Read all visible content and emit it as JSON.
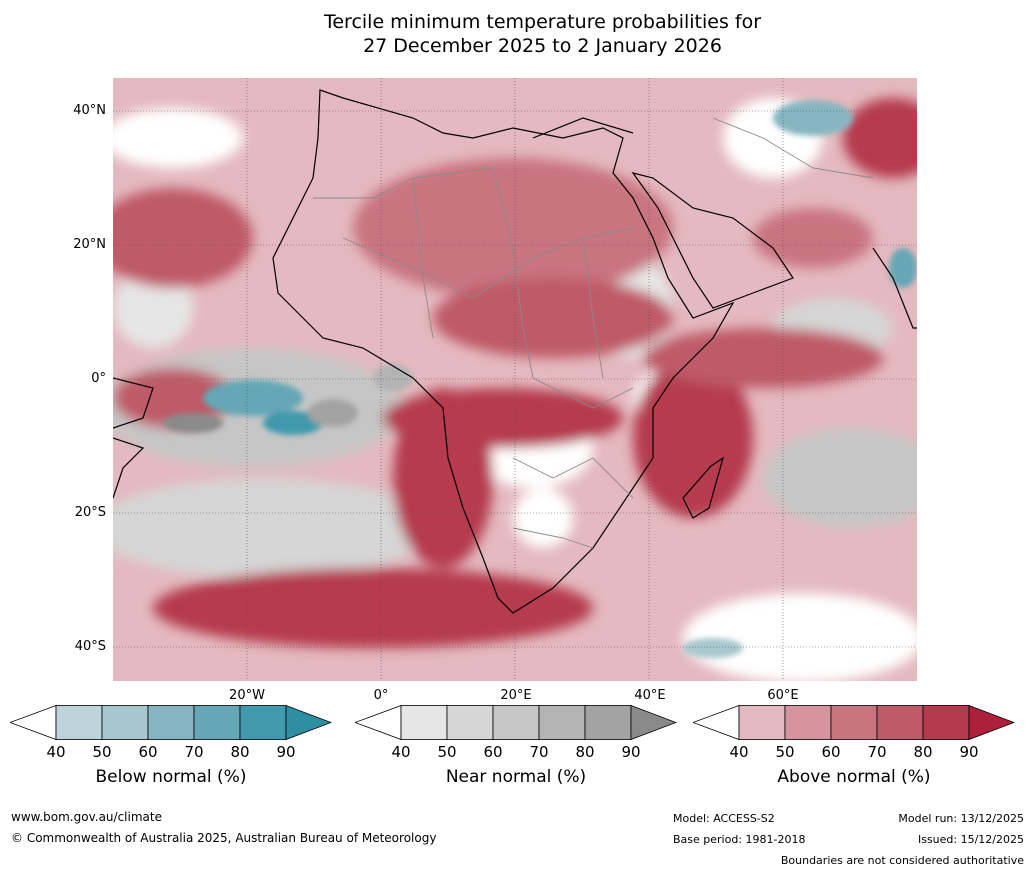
{
  "title_line1": "Tercile minimum temperature probabilities for",
  "title_line2": "27 December 2025 to 2 January 2026",
  "lat_labels": [
    "40°N",
    "20°N",
    "0°",
    "20°S",
    "40°S"
  ],
  "lon_labels": [
    "20°W",
    "0°",
    "20°E",
    "40°E",
    "60°E"
  ],
  "legends": [
    {
      "label": "Below normal (%)",
      "ticks": [
        "40",
        "50",
        "60",
        "70",
        "80",
        "90"
      ],
      "colors": [
        "#ffffff",
        "#bed3da",
        "#a7c7ce",
        "#86b5c1",
        "#65a7b6",
        "#4199ad",
        "#2e8fa3"
      ]
    },
    {
      "label": "Near normal (%)",
      "ticks": [
        "40",
        "50",
        "60",
        "70",
        "80",
        "90"
      ],
      "colors": [
        "#ffffff",
        "#e6e6e6",
        "#d6d6d6",
        "#c6c6c6",
        "#b4b4b4",
        "#a3a3a3",
        "#8a8a8a"
      ]
    },
    {
      "label": "Above normal (%)",
      "ticks": [
        "40",
        "50",
        "60",
        "70",
        "80",
        "90"
      ],
      "colors": [
        "#ffffff",
        "#e4b9bf",
        "#d6959e",
        "#c97580",
        "#bf5a68",
        "#b53a4e",
        "#ad1f3a"
      ]
    }
  ],
  "footer": {
    "website": "www.bom.gov.au/climate",
    "copyright": "© Commonwealth of Australia 2025, Australian Bureau of Meteorology",
    "model": "Model: ACCESS-S2",
    "base_period": "Base period: 1981-2018",
    "model_run": "Model run: 13/12/2025",
    "issued": "Issued: 15/12/2025",
    "disclaimer": "Boundaries are not considered authoritative"
  }
}
